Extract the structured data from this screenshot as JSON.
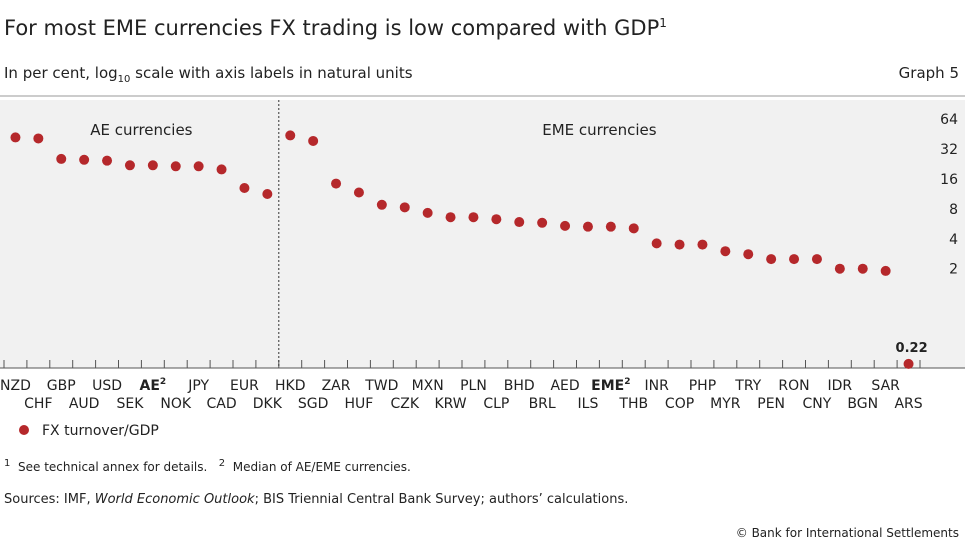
{
  "chart_data": {
    "type": "scatter-category",
    "title": "For most EME currencies FX trading is low compared with GDP",
    "title_note": "1",
    "subtitle_parts": [
      "In per cent, log",
      "10",
      " scale with axis labels in natural units"
    ],
    "graph_label": "Graph 5",
    "log_scale": true,
    "group_labels": [
      "AE currencies",
      "EME currencies"
    ],
    "group_split_after": "DKK",
    "categories": [
      "NZD",
      "CHF",
      "GBP",
      "AUD",
      "USD",
      "SEK",
      "AE",
      "NOK",
      "JPY",
      "CAD",
      "EUR",
      "DKK",
      "HKD",
      "SGD",
      "ZAR",
      "HUF",
      "TWD",
      "CZK",
      "MXN",
      "KRW",
      "PLN",
      "CLP",
      "BHD",
      "BRL",
      "AED",
      "ILS",
      "EME",
      "THB",
      "INR",
      "COP",
      "PHP",
      "MYR",
      "TRY",
      "PEN",
      "RON",
      "CNY",
      "IDR",
      "BGN",
      "SAR",
      "ARS"
    ],
    "bold_categories": [
      "AE",
      "EME"
    ],
    "category_note": "2",
    "label_points": [
      "ARS"
    ],
    "series": [
      {
        "name": "FX turnover/GDP",
        "color": "#b5282b",
        "values": [
          42,
          41,
          25.5,
          25,
          24.5,
          22,
          22,
          21.5,
          21.5,
          20,
          13,
          11.3,
          44,
          38.7,
          14.4,
          11.7,
          8.8,
          8.3,
          7.3,
          6.6,
          6.6,
          6.3,
          5.9,
          5.8,
          5.4,
          5.3,
          5.3,
          5.1,
          3.6,
          3.5,
          3.5,
          3,
          2.8,
          2.5,
          2.5,
          2.5,
          2,
          2,
          1.9,
          0.22
        ]
      }
    ],
    "ylim": [
      0.2,
      100
    ],
    "yticks": [
      2,
      4,
      8,
      16,
      32,
      64
    ],
    "footnotes": [
      [
        "1",
        "See technical annex for details."
      ],
      [
        "2",
        "Median of AE/EME currencies."
      ]
    ],
    "sources_parts": [
      "Sources: IMF, ",
      "World Economic Outlook",
      "; BIS Triennial Central Bank Survey; authors’ calculations."
    ],
    "copyright": "© Bank for International Settlements"
  }
}
